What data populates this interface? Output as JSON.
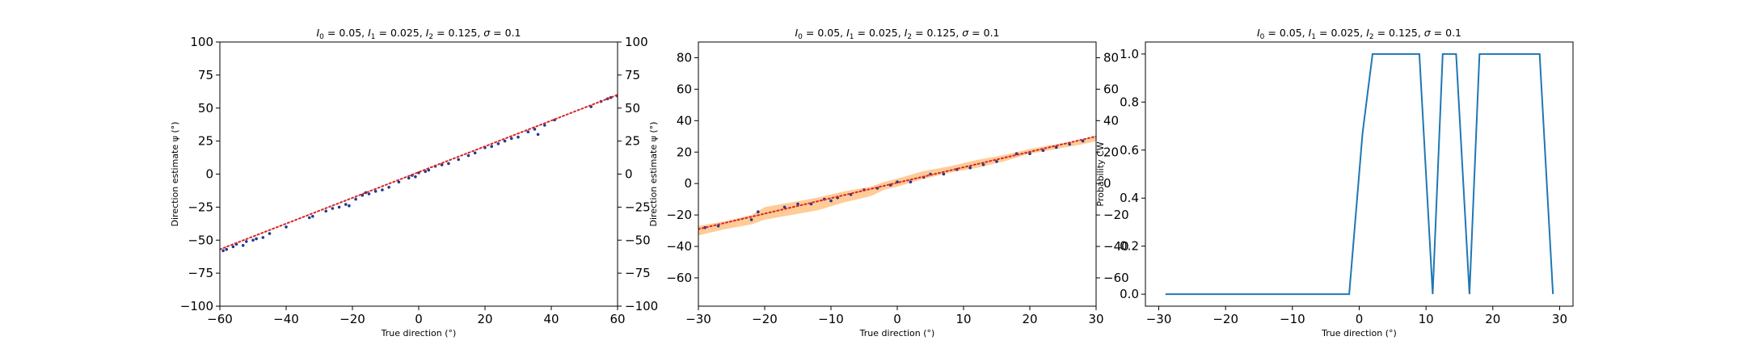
{
  "chart_data": [
    {
      "type": "scatter",
      "title": "$I_0 = 0.05$, $I_1 = 0.025$, $I_2 = 0.125$, $\\sigma = 0.1$",
      "title_parts": [
        "I",
        "0",
        " = 0.05, ",
        "I",
        "1",
        " = 0.025, ",
        "I",
        "2",
        " = 0.125, ",
        "σ",
        " = 0.1"
      ],
      "xlabel": "True direction (°)",
      "ylabel": "Direction estimate ψ (°)",
      "xlim": [
        -60,
        60
      ],
      "ylim": [
        -100,
        100
      ],
      "xticks": [
        -60,
        -40,
        -20,
        0,
        20,
        40,
        60
      ],
      "yticks": [
        -100,
        -75,
        -50,
        -25,
        0,
        25,
        50,
        75,
        100
      ],
      "right_axis_ticks": true,
      "grid": false,
      "colors": {
        "points": "#1f3a93",
        "fit_line": "#d62728"
      },
      "series": [
        {
          "kind": "points",
          "x": [
            -59,
            -58,
            -56,
            -55,
            -53,
            -52,
            -50,
            -49,
            -47,
            -45,
            -40,
            -33,
            -32,
            -28,
            -26,
            -24,
            -22,
            -21,
            -19,
            -17,
            -16,
            -15,
            -13,
            -11,
            -9,
            -6,
            -3,
            -2,
            -1,
            0,
            2,
            3,
            5,
            7,
            9,
            12,
            15,
            17,
            20,
            22,
            24,
            26,
            28,
            30,
            33,
            35,
            36,
            38,
            41,
            52,
            55,
            57,
            58,
            60
          ],
          "y": [
            -58,
            -57,
            -55,
            -53,
            -54,
            -51,
            -50,
            -49,
            -48,
            -45,
            -40,
            -33,
            -32,
            -28,
            -26,
            -25,
            -23,
            -24,
            -19,
            -16,
            -14,
            -15,
            -13,
            -12,
            -10,
            -6,
            -3,
            -1,
            -2,
            1,
            2,
            3,
            6,
            7,
            8,
            11,
            14,
            16,
            20,
            21,
            23,
            25,
            27,
            28,
            32,
            34,
            30,
            37,
            41,
            51,
            55,
            57,
            58,
            59
          ]
        },
        {
          "kind": "line",
          "style": "dotted",
          "x": [
            -60,
            60
          ],
          "y": [
            -57,
            60
          ]
        }
      ]
    },
    {
      "type": "scatter",
      "title": "$I_0 = 0.05$, $I_1 = 0.025$, $I_2 = 0.125$, $\\sigma = 0.1$",
      "title_parts": [
        "I",
        "0",
        " = 0.05, ",
        "I",
        "1",
        " = 0.025, ",
        "I",
        "2",
        " = 0.125, ",
        "σ",
        " = 0.1"
      ],
      "xlabel": "True direction (°)",
      "ylabel": "Direction estimate ψ (°)",
      "xlim": [
        -30,
        30
      ],
      "ylim": [
        -78,
        90
      ],
      "xticks": [
        -30,
        -20,
        -10,
        0,
        10,
        20,
        30
      ],
      "yticks": [
        -60,
        -40,
        -20,
        0,
        20,
        40,
        60,
        80
      ],
      "right_axis_ticks": true,
      "grid": false,
      "colors": {
        "points": "#1f3a93",
        "fit_line": "#d62728",
        "band": "#ffa040"
      },
      "series": [
        {
          "kind": "band",
          "x": [
            -30,
            -26,
            -22,
            -20,
            -16,
            -12,
            -8,
            -4,
            -2,
            0,
            4,
            8,
            12,
            16,
            20,
            24,
            28,
            30
          ],
          "low": [
            -33,
            -29,
            -26,
            -23,
            -20,
            -17,
            -12,
            -8,
            -4,
            -2,
            3,
            7,
            10,
            14,
            19,
            22,
            25,
            27
          ],
          "high": [
            -27,
            -24,
            -20,
            -15,
            -12,
            -9,
            -5,
            -2,
            1,
            3,
            8,
            11,
            15,
            18,
            22,
            25,
            28,
            30
          ]
        },
        {
          "kind": "points",
          "x": [
            -29,
            -27,
            -22,
            -21,
            -17,
            -15,
            -13,
            -11,
            -10,
            -9,
            -7,
            -5,
            -3,
            -1,
            0,
            2,
            4,
            5,
            7,
            9,
            11,
            13,
            15,
            18,
            20,
            22,
            24,
            26,
            28
          ],
          "y": [
            -28,
            -27,
            -23,
            -18,
            -15,
            -13,
            -13,
            -10,
            -11,
            -9,
            -7,
            -4,
            -3,
            -1,
            1,
            1,
            4,
            6,
            6,
            9,
            10,
            12,
            14,
            19,
            19,
            21,
            23,
            25,
            27
          ]
        },
        {
          "kind": "line",
          "style": "dotted",
          "x": [
            -30,
            30
          ],
          "y": [
            -29,
            30
          ]
        }
      ]
    },
    {
      "type": "line",
      "title": "$I_0 = 0.05$, $I_1 = 0.025$, $I_2 = 0.125$, $\\sigma = 0.1$",
      "title_parts": [
        "I",
        "0",
        " = 0.05, ",
        "I",
        "1",
        " = 0.025, ",
        "I",
        "2",
        " = 0.125, ",
        "σ",
        " = 0.1"
      ],
      "xlabel": "True direction (°)",
      "ylabel": "Probability CW",
      "xlim": [
        -32,
        32
      ],
      "ylim": [
        -0.05,
        1.05
      ],
      "xticks": [
        -30,
        -20,
        -10,
        0,
        10,
        20,
        30
      ],
      "yticks": [
        0.0,
        0.2,
        0.4,
        0.6,
        0.8,
        1.0
      ],
      "yticklabels": [
        "0.0",
        "0.2",
        "0.4",
        "0.6",
        "0.8",
        "1.0"
      ],
      "right_axis_ticks": false,
      "grid": false,
      "colors": {
        "line": "#1f77b4"
      },
      "series": [
        {
          "kind": "line",
          "style": "solid",
          "x": [
            -29,
            -1.5,
            0.5,
            2,
            9,
            11,
            12.5,
            14.5,
            16.5,
            18,
            27,
            29
          ],
          "y": [
            0,
            0,
            0.67,
            1,
            1,
            0,
            1,
            1,
            0,
            1,
            1,
            0
          ]
        }
      ]
    }
  ]
}
